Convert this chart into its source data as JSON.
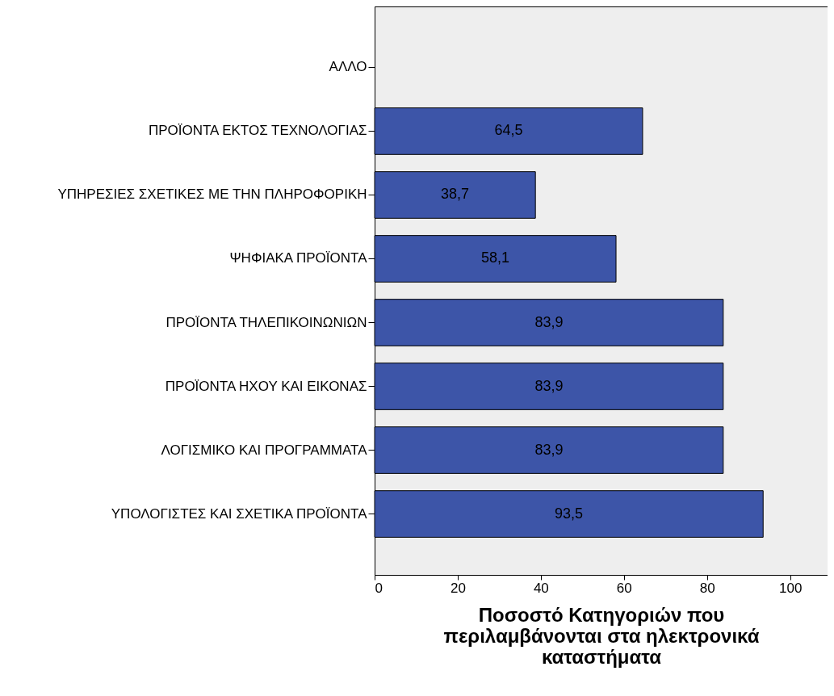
{
  "chart_data": {
    "type": "bar",
    "orientation": "horizontal",
    "xlabel": "Ποσοστό Κατηγοριών που περιλαμβάνονται στα ηλεκτρονικά καταστήματα",
    "categories": [
      "ΑΛΛΟ",
      "ΠΡΟΪΟΝΤΑ ΕΚΤΟΣ ΤΕΧΝΟΛΟΓΙΑΣ",
      "ΥΠΗΡΕΣΙΕΣ ΣΧΕΤΙΚΕΣ ΜΕ ΤΗΝ ΠΛΗΡΟΦΟΡΙΚΗ",
      "ΨΗΦΙΑΚΑ ΠΡΟΪΟΝΤΑ",
      "ΠΡΟΪΟΝΤΑ ΤΗΛΕΠΙΚΟΙΝΩΝΙΩΝ",
      "ΠΡΟΪΟΝΤΑ ΗΧΟΥ ΚΑΙ ΕΙΚΟΝΑΣ",
      "ΛΟΓΙΣΜΙΚΟ ΚΑΙ ΠΡΟΓΡΑΜΜΑΤΑ",
      "ΥΠΟΛΟΓΙΣΤΕΣ ΚΑΙ ΣΧΕΤΙΚΑ ΠΡΟΪΟΝΤΑ"
    ],
    "values": [
      null,
      64.5,
      38.7,
      58.1,
      83.9,
      83.9,
      83.9,
      93.5
    ],
    "value_labels": [
      null,
      "64,5",
      "38,7",
      "58,1",
      "83,9",
      "83,9",
      "83,9",
      "93,5"
    ],
    "color": "#3d55a8",
    "xlim": [
      0,
      109
    ],
    "xticks": [
      0,
      20,
      40,
      60,
      80,
      100
    ],
    "grid": false
  }
}
